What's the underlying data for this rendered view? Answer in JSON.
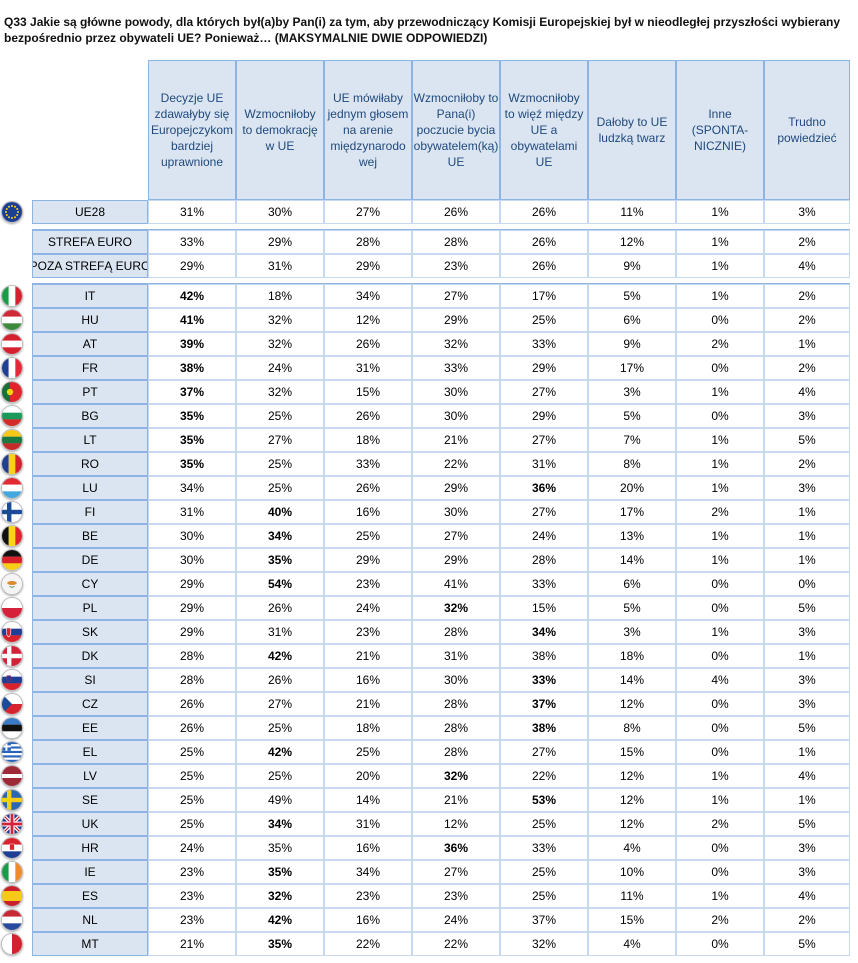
{
  "title": "Q33 Jakie są główne powody, dla których był(a)by Pan(i) za tym, aby przewodniczący Komisji Europejskiej był w nieodległej przyszłości wybierany bezpośrednio przez obywateli UE? Ponieważ… (MAKSYMALNIE DWIE ODPOWIEDZI)",
  "chart_data": {
    "type": "table",
    "columns": [
      "Decyzje UE zdawałyby się Europejczykom bardziej uprawnione",
      "Wzmocniłoby to demokrację w UE",
      "UE mówiłaby jednym głosem na arenie międzynarodo wej",
      "Wzmocniłoby to Pana(i) poczucie bycia obywatelem(ką) UE",
      "Wzmocniłoby to więź między UE a obywatelami UE",
      "Dałoby to UE ludzką twarz",
      "Inne (SPONTA- NICZNIE)",
      "Trudno powiedzieć"
    ],
    "rows": [
      {
        "label": "UE28",
        "flag": "eu",
        "values": [
          "31%",
          "30%",
          "27%",
          "26%",
          "26%",
          "11%",
          "1%",
          "3%"
        ],
        "bold": []
      },
      {
        "label": "STREFA EURO",
        "flag": "",
        "values": [
          "33%",
          "29%",
          "28%",
          "28%",
          "26%",
          "12%",
          "1%",
          "2%"
        ],
        "bold": []
      },
      {
        "label": "POZA STREFĄ EURO",
        "flag": "",
        "values": [
          "29%",
          "31%",
          "29%",
          "23%",
          "26%",
          "9%",
          "1%",
          "4%"
        ],
        "bold": []
      },
      {
        "label": "IT",
        "flag": "it",
        "values": [
          "42%",
          "18%",
          "34%",
          "27%",
          "17%",
          "5%",
          "1%",
          "2%"
        ],
        "bold": [
          0
        ]
      },
      {
        "label": "HU",
        "flag": "hu",
        "values": [
          "41%",
          "32%",
          "12%",
          "29%",
          "25%",
          "6%",
          "0%",
          "2%"
        ],
        "bold": [
          0
        ]
      },
      {
        "label": "AT",
        "flag": "at",
        "values": [
          "39%",
          "32%",
          "26%",
          "32%",
          "33%",
          "9%",
          "2%",
          "1%"
        ],
        "bold": [
          0
        ]
      },
      {
        "label": "FR",
        "flag": "fr",
        "values": [
          "38%",
          "24%",
          "31%",
          "33%",
          "29%",
          "17%",
          "0%",
          "2%"
        ],
        "bold": [
          0
        ]
      },
      {
        "label": "PT",
        "flag": "pt",
        "values": [
          "37%",
          "32%",
          "15%",
          "30%",
          "27%",
          "3%",
          "1%",
          "4%"
        ],
        "bold": [
          0
        ]
      },
      {
        "label": "BG",
        "flag": "bg",
        "values": [
          "35%",
          "25%",
          "26%",
          "30%",
          "29%",
          "5%",
          "0%",
          "3%"
        ],
        "bold": [
          0
        ]
      },
      {
        "label": "LT",
        "flag": "lt",
        "values": [
          "35%",
          "27%",
          "18%",
          "21%",
          "27%",
          "7%",
          "1%",
          "5%"
        ],
        "bold": [
          0
        ]
      },
      {
        "label": "RO",
        "flag": "ro",
        "values": [
          "35%",
          "25%",
          "33%",
          "22%",
          "31%",
          "8%",
          "1%",
          "2%"
        ],
        "bold": [
          0
        ]
      },
      {
        "label": "LU",
        "flag": "lu",
        "values": [
          "34%",
          "25%",
          "26%",
          "29%",
          "36%",
          "20%",
          "1%",
          "3%"
        ],
        "bold": [
          4
        ]
      },
      {
        "label": "FI",
        "flag": "fi",
        "values": [
          "31%",
          "40%",
          "16%",
          "30%",
          "27%",
          "17%",
          "2%",
          "1%"
        ],
        "bold": [
          1
        ]
      },
      {
        "label": "BE",
        "flag": "be",
        "values": [
          "30%",
          "34%",
          "25%",
          "27%",
          "24%",
          "13%",
          "1%",
          "1%"
        ],
        "bold": [
          1
        ]
      },
      {
        "label": "DE",
        "flag": "de",
        "values": [
          "30%",
          "35%",
          "29%",
          "29%",
          "28%",
          "14%",
          "1%",
          "1%"
        ],
        "bold": [
          1
        ]
      },
      {
        "label": "CY",
        "flag": "cy",
        "values": [
          "29%",
          "54%",
          "23%",
          "41%",
          "33%",
          "6%",
          "0%",
          "0%"
        ],
        "bold": [
          1
        ]
      },
      {
        "label": "PL",
        "flag": "pl",
        "values": [
          "29%",
          "26%",
          "24%",
          "32%",
          "15%",
          "5%",
          "0%",
          "5%"
        ],
        "bold": [
          3
        ]
      },
      {
        "label": "SK",
        "flag": "sk",
        "values": [
          "29%",
          "31%",
          "23%",
          "28%",
          "34%",
          "3%",
          "1%",
          "3%"
        ],
        "bold": [
          4
        ]
      },
      {
        "label": "DK",
        "flag": "dk",
        "values": [
          "28%",
          "42%",
          "21%",
          "31%",
          "38%",
          "18%",
          "0%",
          "1%"
        ],
        "bold": [
          1
        ]
      },
      {
        "label": "SI",
        "flag": "si",
        "values": [
          "28%",
          "26%",
          "16%",
          "30%",
          "33%",
          "14%",
          "4%",
          "3%"
        ],
        "bold": [
          4
        ]
      },
      {
        "label": "CZ",
        "flag": "cz",
        "values": [
          "26%",
          "27%",
          "21%",
          "28%",
          "37%",
          "12%",
          "0%",
          "3%"
        ],
        "bold": [
          4
        ]
      },
      {
        "label": "EE",
        "flag": "ee",
        "values": [
          "26%",
          "25%",
          "18%",
          "28%",
          "38%",
          "8%",
          "0%",
          "5%"
        ],
        "bold": [
          4
        ]
      },
      {
        "label": "EL",
        "flag": "el",
        "values": [
          "25%",
          "42%",
          "25%",
          "28%",
          "27%",
          "15%",
          "0%",
          "1%"
        ],
        "bold": [
          1
        ]
      },
      {
        "label": "LV",
        "flag": "lv",
        "values": [
          "25%",
          "25%",
          "20%",
          "32%",
          "22%",
          "12%",
          "1%",
          "4%"
        ],
        "bold": [
          3
        ]
      },
      {
        "label": "SE",
        "flag": "se",
        "values": [
          "25%",
          "49%",
          "14%",
          "21%",
          "53%",
          "12%",
          "1%",
          "1%"
        ],
        "bold": [
          4
        ]
      },
      {
        "label": "UK",
        "flag": "uk",
        "values": [
          "25%",
          "34%",
          "31%",
          "12%",
          "25%",
          "12%",
          "2%",
          "5%"
        ],
        "bold": [
          1
        ]
      },
      {
        "label": "HR",
        "flag": "hr",
        "values": [
          "24%",
          "35%",
          "16%",
          "36%",
          "33%",
          "4%",
          "0%",
          "3%"
        ],
        "bold": [
          3
        ]
      },
      {
        "label": "IE",
        "flag": "ie",
        "values": [
          "23%",
          "35%",
          "34%",
          "27%",
          "25%",
          "10%",
          "0%",
          "3%"
        ],
        "bold": [
          1
        ]
      },
      {
        "label": "ES",
        "flag": "es",
        "values": [
          "23%",
          "32%",
          "23%",
          "23%",
          "25%",
          "11%",
          "1%",
          "4%"
        ],
        "bold": [
          1
        ]
      },
      {
        "label": "NL",
        "flag": "nl",
        "values": [
          "23%",
          "42%",
          "16%",
          "24%",
          "37%",
          "15%",
          "2%",
          "2%"
        ],
        "bold": [
          1
        ]
      },
      {
        "label": "MT",
        "flag": "mt",
        "values": [
          "21%",
          "35%",
          "22%",
          "22%",
          "32%",
          "4%",
          "0%",
          "5%"
        ],
        "bold": [
          1
        ]
      }
    ],
    "colors": {
      "header_bg": "#dbe5f1",
      "header_text": "#1f497d",
      "border": "#8eb4e3"
    }
  }
}
